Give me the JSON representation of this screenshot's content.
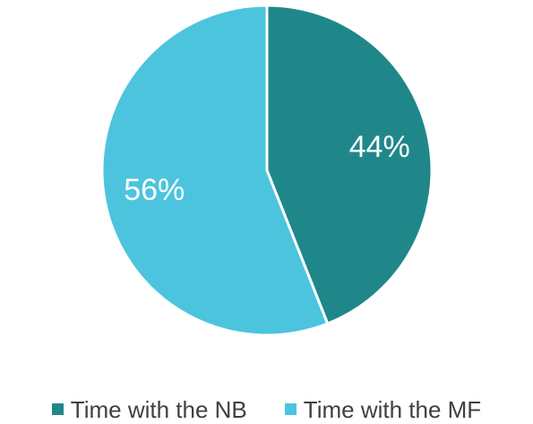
{
  "chart_data": {
    "type": "pie",
    "title": "",
    "start_angle": "12 o'clock, clockwise",
    "legend_position": "bottom",
    "slices": [
      {
        "name": "Time with the NB",
        "value": 44,
        "label": "44%",
        "color": "#1f878a"
      },
      {
        "name": "Time with the MF",
        "value": 56,
        "label": "56%",
        "color": "#4cc4de"
      }
    ]
  },
  "legend": {
    "items": [
      {
        "label": "Time with the NB",
        "color": "#1f878a"
      },
      {
        "label": "Time with the MF",
        "color": "#4cc4de"
      }
    ]
  }
}
